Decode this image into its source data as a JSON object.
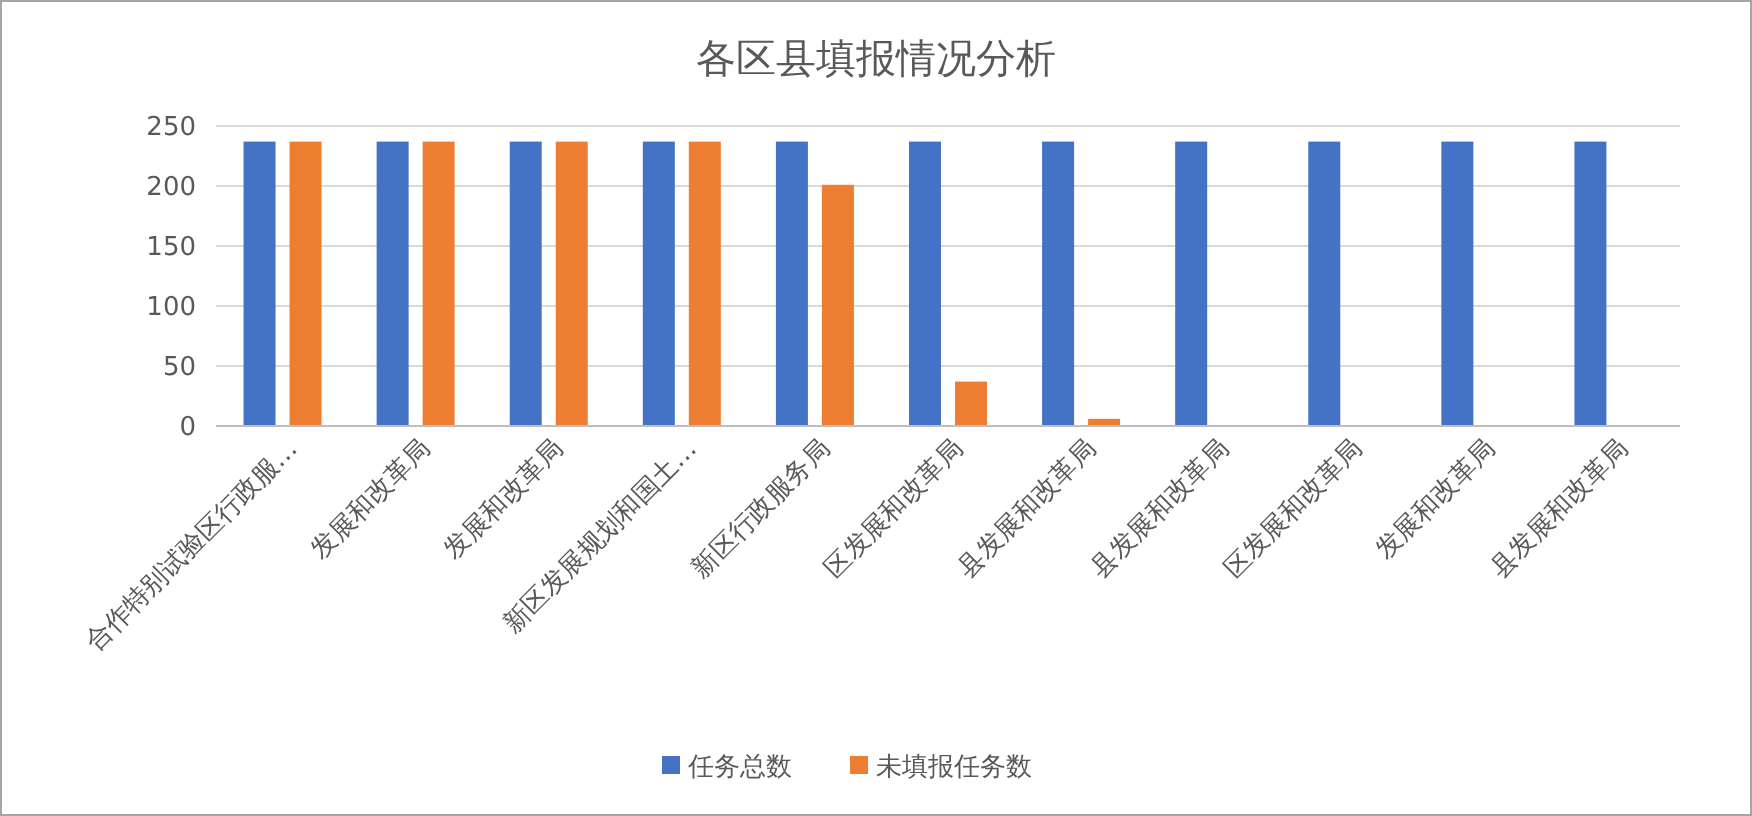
{
  "chart_data": {
    "type": "bar",
    "title": "各区县填报情况分析",
    "categories": [
      "合作特别试验区行政服…",
      "发展和改革局",
      "发展和改革局",
      "新区发展规划和国土…",
      "新区行政服务局",
      "区发展和改革局",
      "县发展和改革局",
      "县发展和改革局",
      "区发展和改革局",
      "发展和改革局",
      "县发展和改革局"
    ],
    "series": [
      {
        "name": "任务总数",
        "color": "#4472c4",
        "values": [
          237,
          237,
          237,
          237,
          237,
          237,
          237,
          237,
          237,
          237,
          237
        ]
      },
      {
        "name": "未填报任务数",
        "color": "#ed7d31",
        "values": [
          237,
          237,
          237,
          237,
          201,
          37,
          6,
          0,
          0,
          0,
          0
        ]
      }
    ],
    "ylim": [
      0,
      250
    ],
    "yticks": [
      0,
      50,
      100,
      150,
      200,
      250
    ],
    "grid": "y",
    "legend": "bottom"
  }
}
